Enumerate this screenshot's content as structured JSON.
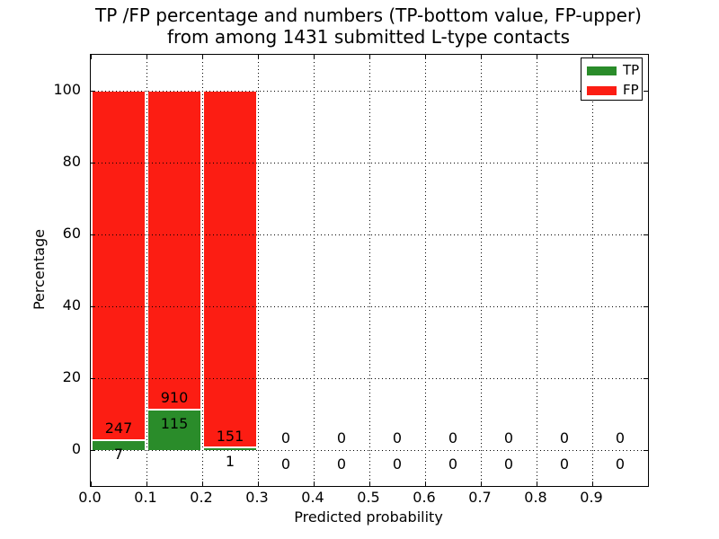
{
  "figure": {
    "title_line1": "TP /FP percentage and numbers (TP-bottom value, FP-upper)",
    "title_line2": "from among 1431 submitted L-type contacts",
    "background": "#ffffff"
  },
  "chart_data": {
    "type": "bar",
    "stacked": true,
    "title": "TP /FP percentage and numbers (TP-bottom value, FP-upper)\nfrom among 1431 submitted L-type contacts",
    "total_contacts": 1431,
    "xlabel": "Predicted probability",
    "ylabel": "Percentage",
    "xlim": [
      0.0,
      1.0
    ],
    "ylim": [
      -10,
      110
    ],
    "xticks": [
      0.0,
      0.1,
      0.2,
      0.3,
      0.4,
      0.5,
      0.6,
      0.7,
      0.8,
      0.9
    ],
    "xtick_labels": [
      "0.0",
      "0.1",
      "0.2",
      "0.3",
      "0.4",
      "0.5",
      "0.6",
      "0.7",
      "0.8",
      "0.9"
    ],
    "yticks": [
      0,
      20,
      40,
      60,
      80,
      100
    ],
    "ytick_labels": [
      "0",
      "20",
      "40",
      "60",
      "80",
      "100"
    ],
    "grid": {
      "style": "dotted",
      "color": "#000000",
      "axisbelow": false
    },
    "bin_width": 0.1,
    "bin_starts": [
      0.0,
      0.1,
      0.2,
      0.3,
      0.4,
      0.5,
      0.6,
      0.7,
      0.8,
      0.9
    ],
    "bar_edge_color": "#ffffff",
    "series": [
      {
        "name": "TP",
        "color": "#2a8c2a",
        "counts": [
          7,
          115,
          1,
          0,
          0,
          0,
          0,
          0,
          0,
          0
        ],
        "pct": [
          2.76,
          11.22,
          0.66,
          0,
          0,
          0,
          0,
          0,
          0,
          0
        ]
      },
      {
        "name": "FP",
        "color": "#fc1d13",
        "counts": [
          247,
          910,
          151,
          0,
          0,
          0,
          0,
          0,
          0,
          0
        ],
        "pct": [
          97.24,
          88.78,
          99.34,
          0,
          0,
          0,
          0,
          0,
          0,
          0
        ]
      }
    ],
    "legend": {
      "position": "upper right",
      "entries": [
        {
          "label": "TP",
          "color": "#2a8c2a"
        },
        {
          "label": "FP",
          "color": "#fc1d13"
        }
      ]
    }
  }
}
